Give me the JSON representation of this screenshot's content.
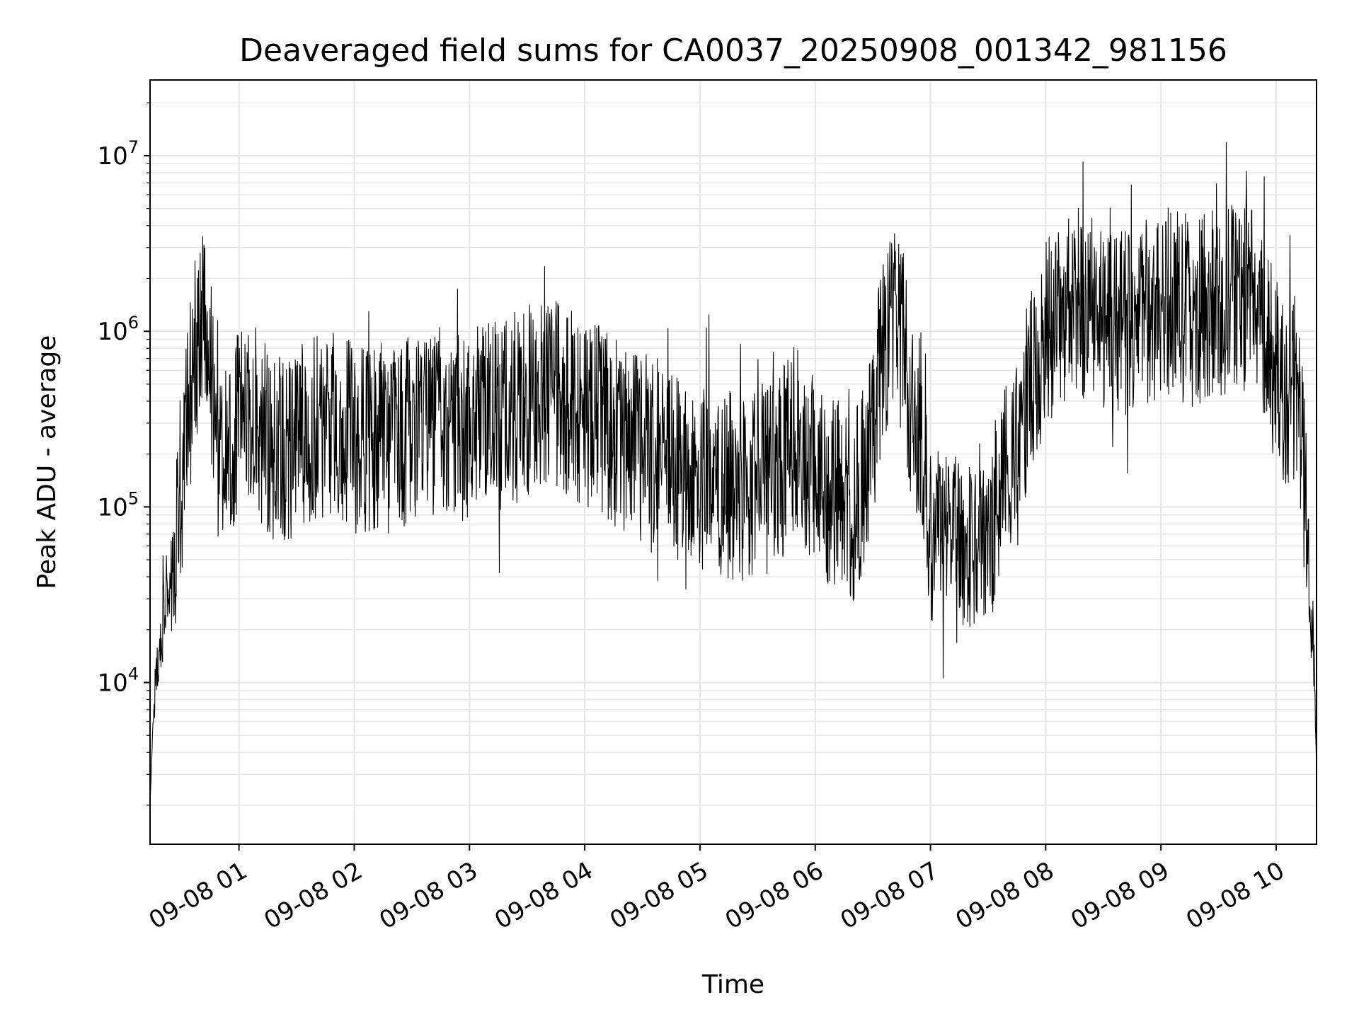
{
  "chart_data": {
    "type": "line",
    "title": "Deaveraged field sums for CA0037_20250908_001342_981156",
    "xlabel": "Time",
    "ylabel": "Peak ADU - average",
    "yscale": "log",
    "xlim": [
      "2025-09-08 00:13:42",
      "2025-09-08 10:21:00"
    ],
    "ylim": [
      1200,
      27000000
    ],
    "grid": true,
    "line_color": "#000000",
    "grid_color": "#e6e6e6",
    "x_ticks": [
      {
        "t": "2025-09-08 01:00",
        "label": "09-08 01"
      },
      {
        "t": "2025-09-08 02:00",
        "label": "09-08 02"
      },
      {
        "t": "2025-09-08 03:00",
        "label": "09-08 03"
      },
      {
        "t": "2025-09-08 04:00",
        "label": "09-08 04"
      },
      {
        "t": "2025-09-08 05:00",
        "label": "09-08 05"
      },
      {
        "t": "2025-09-08 06:00",
        "label": "09-08 06"
      },
      {
        "t": "2025-09-08 07:00",
        "label": "09-08 07"
      },
      {
        "t": "2025-09-08 08:00",
        "label": "09-08 08"
      },
      {
        "t": "2025-09-08 09:00",
        "label": "09-08 09"
      },
      {
        "t": "2025-09-08 10:00",
        "label": "09-08 10"
      }
    ],
    "y_ticks": [
      {
        "v": 10000,
        "base": "10",
        "exp": "4"
      },
      {
        "v": 100000,
        "base": "10",
        "exp": "5"
      },
      {
        "v": 1000000,
        "base": "10",
        "exp": "6"
      },
      {
        "v": 10000000,
        "base": "10",
        "exp": "7"
      }
    ],
    "series": [
      {
        "x": [
          "2025-09-08 00:13:42",
          "2025-09-08 00:15",
          "2025-09-08 00:17",
          "2025-09-08 00:20",
          "2025-09-08 00:24",
          "2025-09-08 00:28",
          "2025-09-08 00:32",
          "2025-09-08 00:36",
          "2025-09-08 00:40",
          "2025-09-08 00:44",
          "2025-09-08 00:48",
          "2025-09-08 00:52",
          "2025-09-08 00:56",
          "2025-09-08 01:00",
          "2025-09-08 01:10",
          "2025-09-08 01:20",
          "2025-09-08 01:30",
          "2025-09-08 01:40",
          "2025-09-08 01:50",
          "2025-09-08 02:00",
          "2025-09-08 02:20",
          "2025-09-08 02:40",
          "2025-09-08 03:00",
          "2025-09-08 03:20",
          "2025-09-08 03:30",
          "2025-09-08 03:40",
          "2025-09-08 03:50",
          "2025-09-08 04:00",
          "2025-09-08 04:20",
          "2025-09-08 04:40",
          "2025-09-08 04:50",
          "2025-09-08 05:00",
          "2025-09-08 05:20",
          "2025-09-08 05:40",
          "2025-09-08 05:50",
          "2025-09-08 05:55",
          "2025-09-08 06:00",
          "2025-09-08 06:10",
          "2025-09-08 06:20",
          "2025-09-08 06:30",
          "2025-09-08 06:35",
          "2025-09-08 06:40",
          "2025-09-08 06:45",
          "2025-09-08 06:50",
          "2025-09-08 06:55",
          "2025-09-08 07:00",
          "2025-09-08 07:15",
          "2025-09-08 07:30",
          "2025-09-08 07:36",
          "2025-09-08 07:40",
          "2025-09-08 07:45",
          "2025-09-08 07:50",
          "2025-09-08 07:55",
          "2025-09-08 08:00",
          "2025-09-08 08:15",
          "2025-09-08 08:30",
          "2025-09-08 08:45",
          "2025-09-08 09:00",
          "2025-09-08 09:15",
          "2025-09-08 09:30",
          "2025-09-08 09:40",
          "2025-09-08 09:50",
          "2025-09-08 10:00",
          "2025-09-08 10:05",
          "2025-09-08 10:10",
          "2025-09-08 10:12",
          "2025-09-08 10:14",
          "2025-09-08 10:16",
          "2025-09-08 10:18",
          "2025-09-08 10:20",
          "2025-09-08 10:21"
        ],
        "y": [
          2000,
          5000,
          12000,
          25000,
          35000,
          80000,
          250000,
          600000,
          1100000,
          800000,
          250000,
          180000,
          220000,
          300000,
          300000,
          200000,
          250000,
          300000,
          280000,
          250000,
          250000,
          280000,
          300000,
          350000,
          400000,
          450000,
          400000,
          350000,
          250000,
          200000,
          180000,
          150000,
          130000,
          150000,
          250000,
          200000,
          150000,
          120000,
          100000,
          250000,
          800000,
          1200000,
          900000,
          400000,
          150000,
          70000,
          60000,
          60000,
          100000,
          150000,
          200000,
          400000,
          600000,
          1000000,
          1500000,
          1200000,
          1000000,
          1500000,
          1300000,
          1500000,
          1600000,
          1400000,
          600000,
          450000,
          450000,
          350000,
          150000,
          80000,
          30000,
          12000,
          3000
        ]
      }
    ]
  }
}
